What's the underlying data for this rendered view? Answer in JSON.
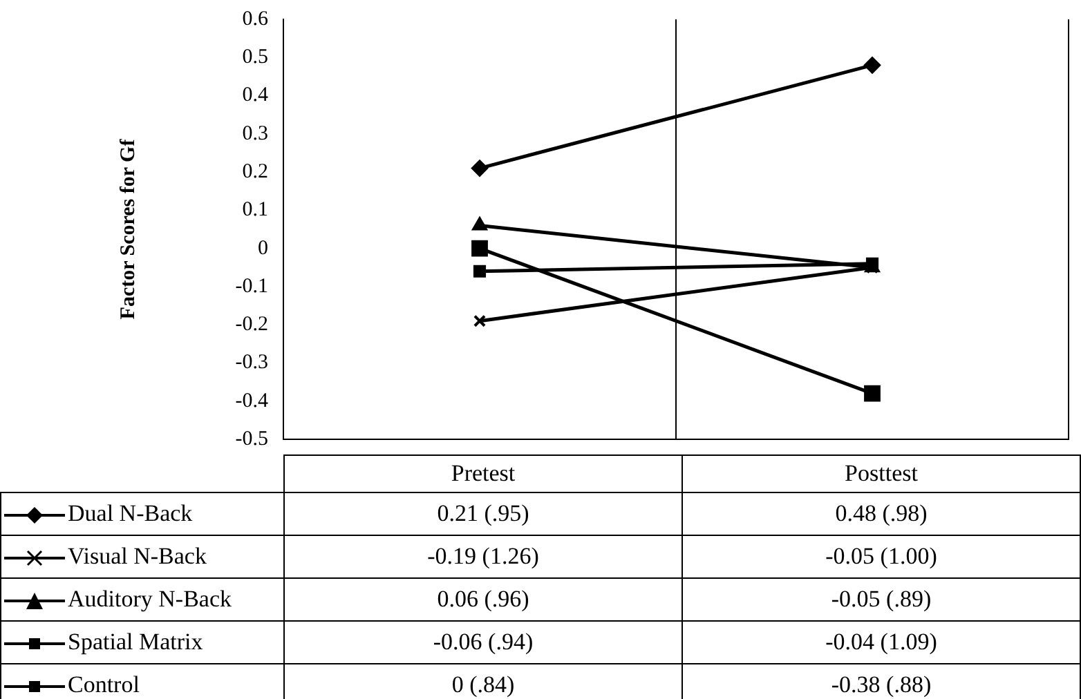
{
  "chart_data": {
    "type": "line",
    "ylabel": "Factor Scores for Gf",
    "categories": [
      "Pretest",
      "Posttest"
    ],
    "series": [
      {
        "name": "Dual N-Back",
        "color": "#000000",
        "marker": "diamond",
        "values": [
          0.21,
          0.48
        ],
        "value_labels": [
          "0.21 (.95)",
          "0.48 (.98)"
        ]
      },
      {
        "name": "Visual N-Back",
        "color": "#000000",
        "marker": "cross",
        "values": [
          -0.19,
          -0.05
        ],
        "value_labels": [
          "-0.19 (1.26)",
          "-0.05 (1.00)"
        ]
      },
      {
        "name": "Auditory N-Back",
        "color": "#000000",
        "marker": "triangle",
        "values": [
          0.06,
          -0.05
        ],
        "value_labels": [
          "0.06 (.96)",
          "-0.05 (.89)"
        ]
      },
      {
        "name": "Spatial Matrix",
        "color": "#000000",
        "marker": "square",
        "values": [
          -0.06,
          -0.04
        ],
        "value_labels": [
          "-0.06 (.94)",
          "-0.04 (1.09)"
        ]
      },
      {
        "name": "Control",
        "color": "#000000",
        "marker": "square",
        "values": [
          0,
          -0.38
        ],
        "value_labels": [
          "0 (.84)",
          "-0.38 (.88)"
        ]
      }
    ],
    "ylim": [
      -0.5,
      0.6
    ],
    "yticks": [
      -0.5,
      -0.4,
      -0.3,
      -0.2,
      -0.1,
      0,
      0.1,
      0.2,
      0.3,
      0.4,
      0.5,
      0.6
    ],
    "grid": "x",
    "legend": "bottom",
    "line_style": "solid"
  }
}
